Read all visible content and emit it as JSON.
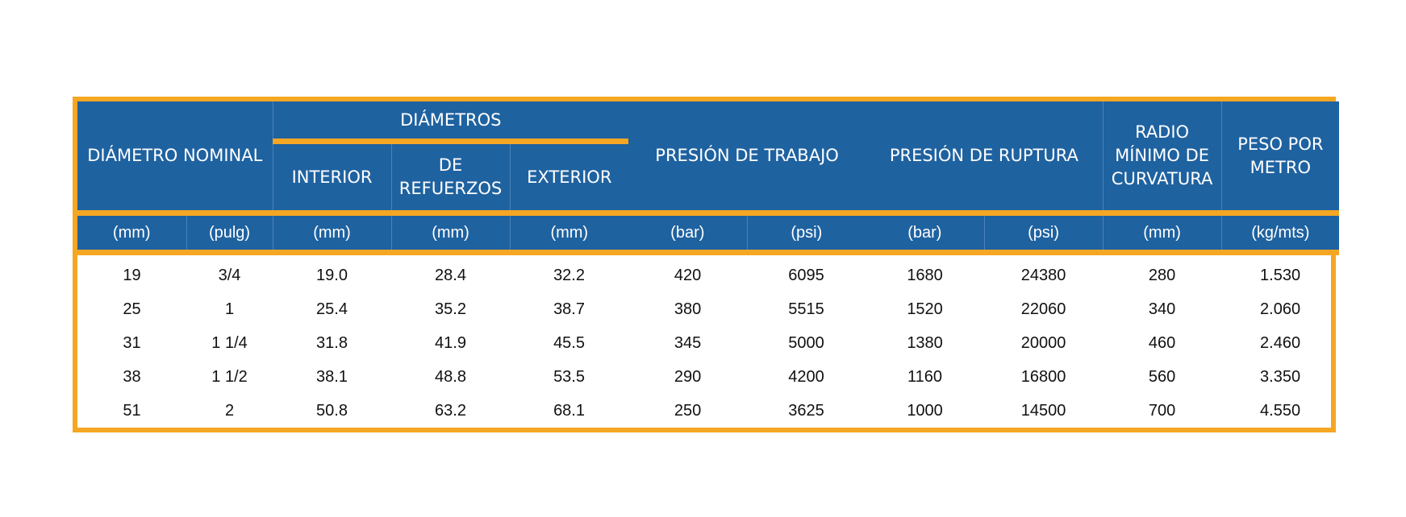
{
  "table": {
    "headers": {
      "nominal": "DIÁMETRO NOMINAL",
      "diameters": "DIÁMETROS",
      "interior": "INTERIOR",
      "reinforcement": "DE REFUERZOS",
      "exterior": "EXTERIOR",
      "working_pressure": "PRESIÓN DE TRABAJO",
      "burst_pressure": "PRESIÓN DE RUPTURA",
      "min_bend_radius": "RADIO MÍNIMO DE CURVATURA",
      "weight_per_meter": "PESO POR METRO"
    },
    "units": [
      "(mm)",
      "(pulg)",
      "(mm)",
      "(mm)",
      "(mm)",
      "(bar)",
      "(psi)",
      "(bar)",
      "(psi)",
      "(mm)",
      "(kg/mts)"
    ],
    "rows": [
      [
        "19",
        "3/4",
        "19.0",
        "28.4",
        "32.2",
        "420",
        "6095",
        "1680",
        "24380",
        "280",
        "1.530"
      ],
      [
        "25",
        "1",
        "25.4",
        "35.2",
        "38.7",
        "380",
        "5515",
        "1520",
        "22060",
        "340",
        "2.060"
      ],
      [
        "31",
        "1 1/4",
        "31.8",
        "41.9",
        "45.5",
        "345",
        "5000",
        "1380",
        "20000",
        "460",
        "2.460"
      ],
      [
        "38",
        "1 1/2",
        "38.1",
        "48.8",
        "53.5",
        "290",
        "4200",
        "1160",
        "16800",
        "560",
        "3.350"
      ],
      [
        "51",
        "2",
        "50.8",
        "63.2",
        "68.1",
        "250",
        "3625",
        "1000",
        "14500",
        "700",
        "4.550"
      ]
    ]
  },
  "colors": {
    "header_bg": "#1f62a0",
    "border_orange": "#f5a623",
    "header_text": "#ffffff",
    "body_text": "#111111"
  }
}
